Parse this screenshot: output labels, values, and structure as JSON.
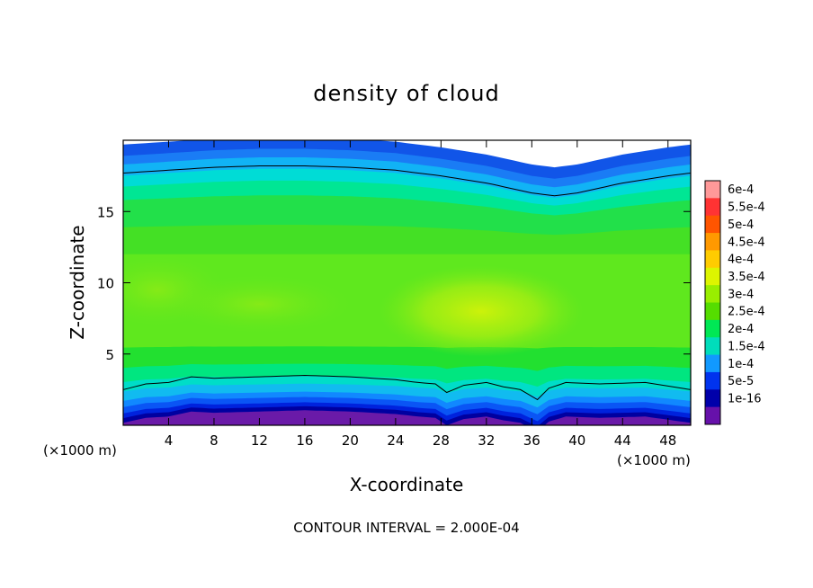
{
  "chart_data": {
    "type": "heatmap",
    "title": "density of cloud",
    "xlabel": "X-coordinate",
    "ylabel": "Z-coordinate",
    "x_unit_left": "(×1000 m)",
    "x_unit_right": "(×1000 m)",
    "xlim": [
      0,
      50
    ],
    "ylim": [
      0,
      20
    ],
    "x_ticks": [
      4,
      8,
      12,
      16,
      20,
      24,
      28,
      32,
      36,
      40,
      44,
      48
    ],
    "x_tick_labels": [
      "4",
      "8",
      "12",
      "16",
      "20",
      "24",
      "28",
      "32",
      "36",
      "40",
      "44",
      "48"
    ],
    "y_ticks": [
      5,
      10,
      15
    ],
    "y_tick_labels": [
      "5",
      "10",
      "15"
    ],
    "colorbar_labels": [
      "6e-4",
      "5.5e-4",
      "5e-4",
      "4.5e-4",
      "4e-4",
      "3.5e-4",
      "3e-4",
      "2.5e-4",
      "2e-4",
      "1.5e-4",
      "1e-4",
      "5e-5",
      "1e-16"
    ],
    "colorbar_colors": [
      "#ff9999",
      "#ff3333",
      "#ff5500",
      "#ff9900",
      "#ffcc00",
      "#ddf500",
      "#99ee00",
      "#55dd00",
      "#00e855",
      "#00ddbb",
      "#1199ff",
      "#0033ee",
      "#0000aa",
      "#6611aa"
    ],
    "contour_interval_text": "CONTOUR INTERVAL = 2.000E-04",
    "bands": [
      {
        "z": 0.7,
        "color": "#6a1aa8"
      },
      {
        "z": 1.0,
        "color": "#0000a0"
      },
      {
        "z": 1.3,
        "color": "#0022dd"
      },
      {
        "z": 1.7,
        "color": "#0a55f5"
      },
      {
        "z": 2.1,
        "color": "#1188ff"
      },
      {
        "z": 2.7,
        "color": "#11bbf0"
      },
      {
        "z": 3.3,
        "color": "#00ddc8"
      },
      {
        "z": 4.2,
        "color": "#00e680"
      },
      {
        "z": 5.5,
        "color": "#22e030"
      },
      {
        "z": 12.0,
        "color": "#5fe81e"
      },
      {
        "z": 14.0,
        "color": "#44e025"
      },
      {
        "z": 16.0,
        "color": "#22e04a"
      },
      {
        "z": 17.0,
        "color": "#00e694"
      },
      {
        "z": 17.8,
        "color": "#00dcd6"
      },
      {
        "z": 18.6,
        "color": "#11b3f5"
      },
      {
        "z": 19.2,
        "color": "#1a7cf5"
      },
      {
        "z": 20.0,
        "color": "#1155e8"
      }
    ],
    "contour_lines": {
      "upper": {
        "x": [
          0,
          4,
          8,
          12,
          16,
          20,
          24,
          28,
          32,
          36,
          38,
          40,
          44,
          48,
          50
        ],
        "z": [
          17.7,
          17.9,
          18.1,
          18.2,
          18.2,
          18.1,
          17.9,
          17.5,
          17.0,
          16.3,
          16.1,
          16.3,
          17.0,
          17.5,
          17.7
        ]
      },
      "lower": {
        "x": [
          0,
          2,
          4,
          6,
          8,
          12,
          16,
          20,
          24,
          26,
          27.5,
          28.5,
          30,
          32,
          33.5,
          35,
          36.5,
          37.5,
          39,
          42,
          46,
          50
        ],
        "z": [
          2.5,
          2.9,
          3.0,
          3.4,
          3.3,
          3.4,
          3.5,
          3.4,
          3.2,
          3.0,
          2.9,
          2.3,
          2.8,
          3.0,
          2.7,
          2.5,
          1.8,
          2.6,
          3.0,
          2.9,
          3.0,
          2.5
        ]
      }
    },
    "maximum_region": {
      "x": 31.5,
      "z": 8.0,
      "value": "4e-4"
    },
    "grid": false,
    "legend_position": "right colorbar"
  }
}
